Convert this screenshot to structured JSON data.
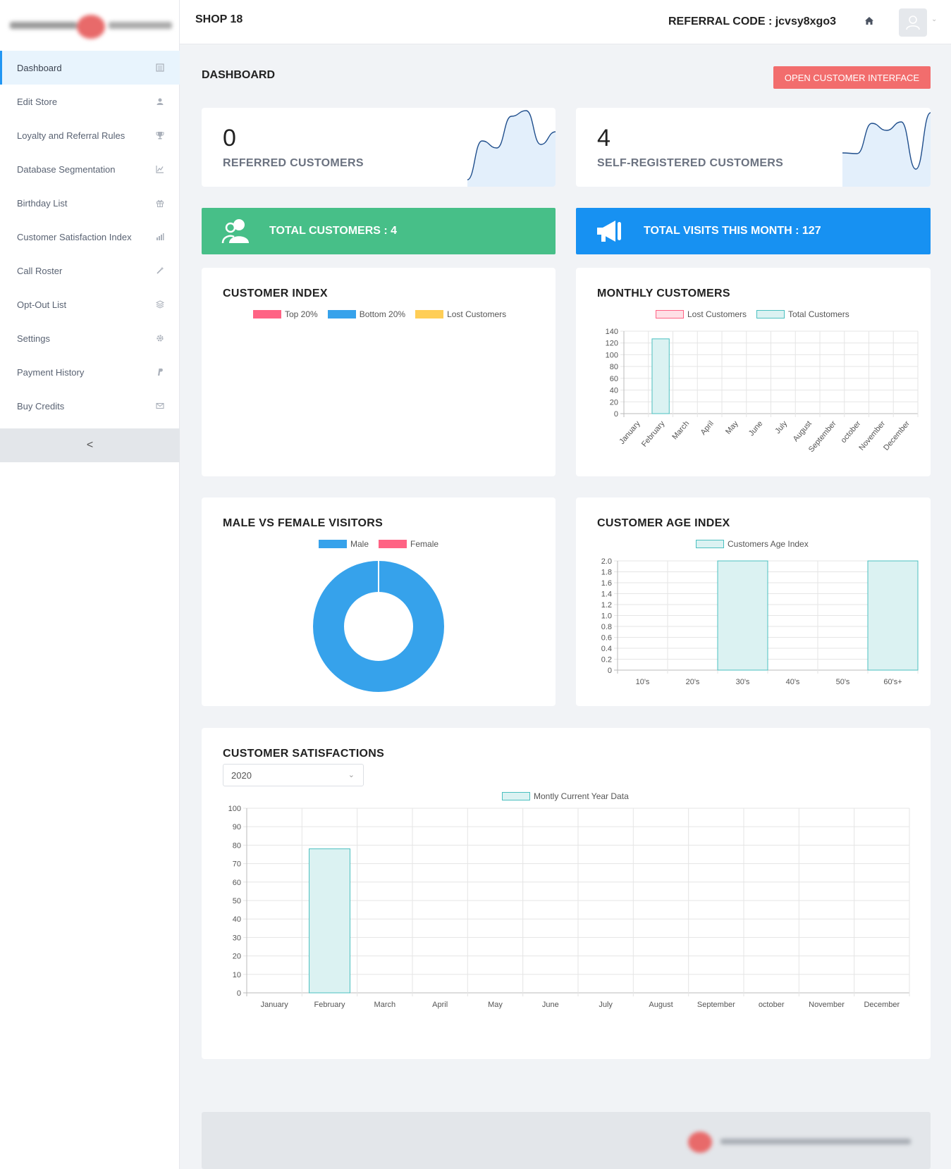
{
  "header": {
    "shop_name": "SHOP 18",
    "referral_code": "REFERRAL CODE : jcvsy8xgo3"
  },
  "sidebar": {
    "items": [
      {
        "label": "Dashboard",
        "icon": "dashboard-icon",
        "active": true
      },
      {
        "label": "Edit Store",
        "icon": "user-icon"
      },
      {
        "label": "Loyalty and Referral Rules",
        "icon": "trophy-icon"
      },
      {
        "label": "Database Segmentation",
        "icon": "line-chart-icon"
      },
      {
        "label": "Birthday List",
        "icon": "gift-icon"
      },
      {
        "label": "Customer Satisfaction Index",
        "icon": "bar-chart-icon"
      },
      {
        "label": "Call Roster",
        "icon": "wand-icon"
      },
      {
        "label": "Opt-Out List",
        "icon": "layers-icon"
      },
      {
        "label": "Settings",
        "icon": "gear-icon"
      },
      {
        "label": "Payment History",
        "icon": "paypal-icon"
      },
      {
        "label": "Buy Credits",
        "icon": "envelope-icon"
      }
    ],
    "collapse_glyph": "<"
  },
  "page": {
    "title": "DASHBOARD",
    "open_button": "OPEN CUSTOMER INTERFACE"
  },
  "stats": {
    "referred": {
      "value": "0",
      "label": "REFERRED CUSTOMERS"
    },
    "self_registered": {
      "value": "4",
      "label": "SELF-REGISTERED CUSTOMERS"
    }
  },
  "banners": {
    "total_customers": "TOTAL CUSTOMERS : 4",
    "total_visits": "TOTAL VISITS THIS MONTH : 127",
    "colors": {
      "green": "#47bf88",
      "blue": "#1791f2"
    }
  },
  "charts": {
    "customer_index": {
      "title": "CUSTOMER INDEX",
      "legend": [
        {
          "name": "Top 20%",
          "color": "#ff6384"
        },
        {
          "name": "Bottom 20%",
          "color": "#36a2eb"
        },
        {
          "name": "Lost Customers",
          "color": "#ffce56"
        }
      ]
    },
    "monthly_customers": {
      "title": "MONTHLY CUSTOMERS",
      "legend": [
        {
          "name": "Lost Customers"
        },
        {
          "name": "Total Customers"
        }
      ]
    },
    "gender": {
      "title": "MALE VS FEMALE VISITORS",
      "legend": [
        {
          "name": "Male",
          "color": "#36a2eb"
        },
        {
          "name": "Female",
          "color": "#ff6384"
        }
      ]
    },
    "age": {
      "title": "CUSTOMER AGE INDEX",
      "legend": [
        {
          "name": "Customers Age Index"
        }
      ]
    },
    "satisfaction": {
      "title": "CUSTOMER SATISFACTIONS",
      "year": "2020",
      "legend": [
        {
          "name": "Montly Current Year Data"
        }
      ]
    }
  },
  "chart_data": [
    {
      "type": "bar",
      "id": "monthly",
      "categories": [
        "January",
        "February",
        "March",
        "April",
        "May",
        "June",
        "July",
        "August",
        "September",
        "october",
        "November",
        "December"
      ],
      "series": [
        {
          "name": "Lost Customers",
          "values": [
            0,
            0,
            0,
            0,
            0,
            0,
            0,
            0,
            0,
            0,
            0,
            0
          ]
        },
        {
          "name": "Total Customers",
          "values": [
            0,
            127,
            0,
            0,
            0,
            0,
            0,
            0,
            0,
            0,
            0,
            0
          ]
        }
      ],
      "ylim": [
        0,
        140
      ],
      "yticks": [
        0,
        20,
        40,
        60,
        80,
        100,
        120,
        140
      ]
    },
    {
      "type": "pie",
      "id": "gender",
      "categories": [
        "Male",
        "Female"
      ],
      "values": [
        4,
        0
      ]
    },
    {
      "type": "bar",
      "id": "age",
      "categories": [
        "10's",
        "20's",
        "30's",
        "40's",
        "50's",
        "60's+"
      ],
      "series": [
        {
          "name": "Customers Age Index",
          "values": [
            0,
            0,
            2,
            0,
            0,
            2
          ]
        }
      ],
      "ylim": [
        0,
        2.0
      ],
      "yticks": [
        "0",
        "0.2",
        "0.4",
        "0.6",
        "0.8",
        "1.0",
        "1.2",
        "1.4",
        "1.6",
        "1.8",
        "2.0"
      ]
    },
    {
      "type": "bar",
      "id": "satisfaction",
      "categories": [
        "January",
        "February",
        "March",
        "April",
        "May",
        "June",
        "July",
        "August",
        "September",
        "october",
        "November",
        "December"
      ],
      "series": [
        {
          "name": "Montly Current Year Data",
          "values": [
            0,
            78,
            0,
            0,
            0,
            0,
            0,
            0,
            0,
            0,
            0,
            0
          ]
        }
      ],
      "ylim": [
        0,
        100
      ],
      "yticks": [
        0,
        10,
        20,
        30,
        40,
        50,
        60,
        70,
        80,
        90,
        100
      ]
    },
    {
      "type": "line",
      "id": "spark_referred",
      "values": [
        0,
        55,
        45,
        90,
        98,
        50,
        68
      ]
    },
    {
      "type": "line",
      "id": "spark_self",
      "values": [
        38,
        37,
        80,
        70,
        82,
        15,
        95
      ]
    }
  ]
}
